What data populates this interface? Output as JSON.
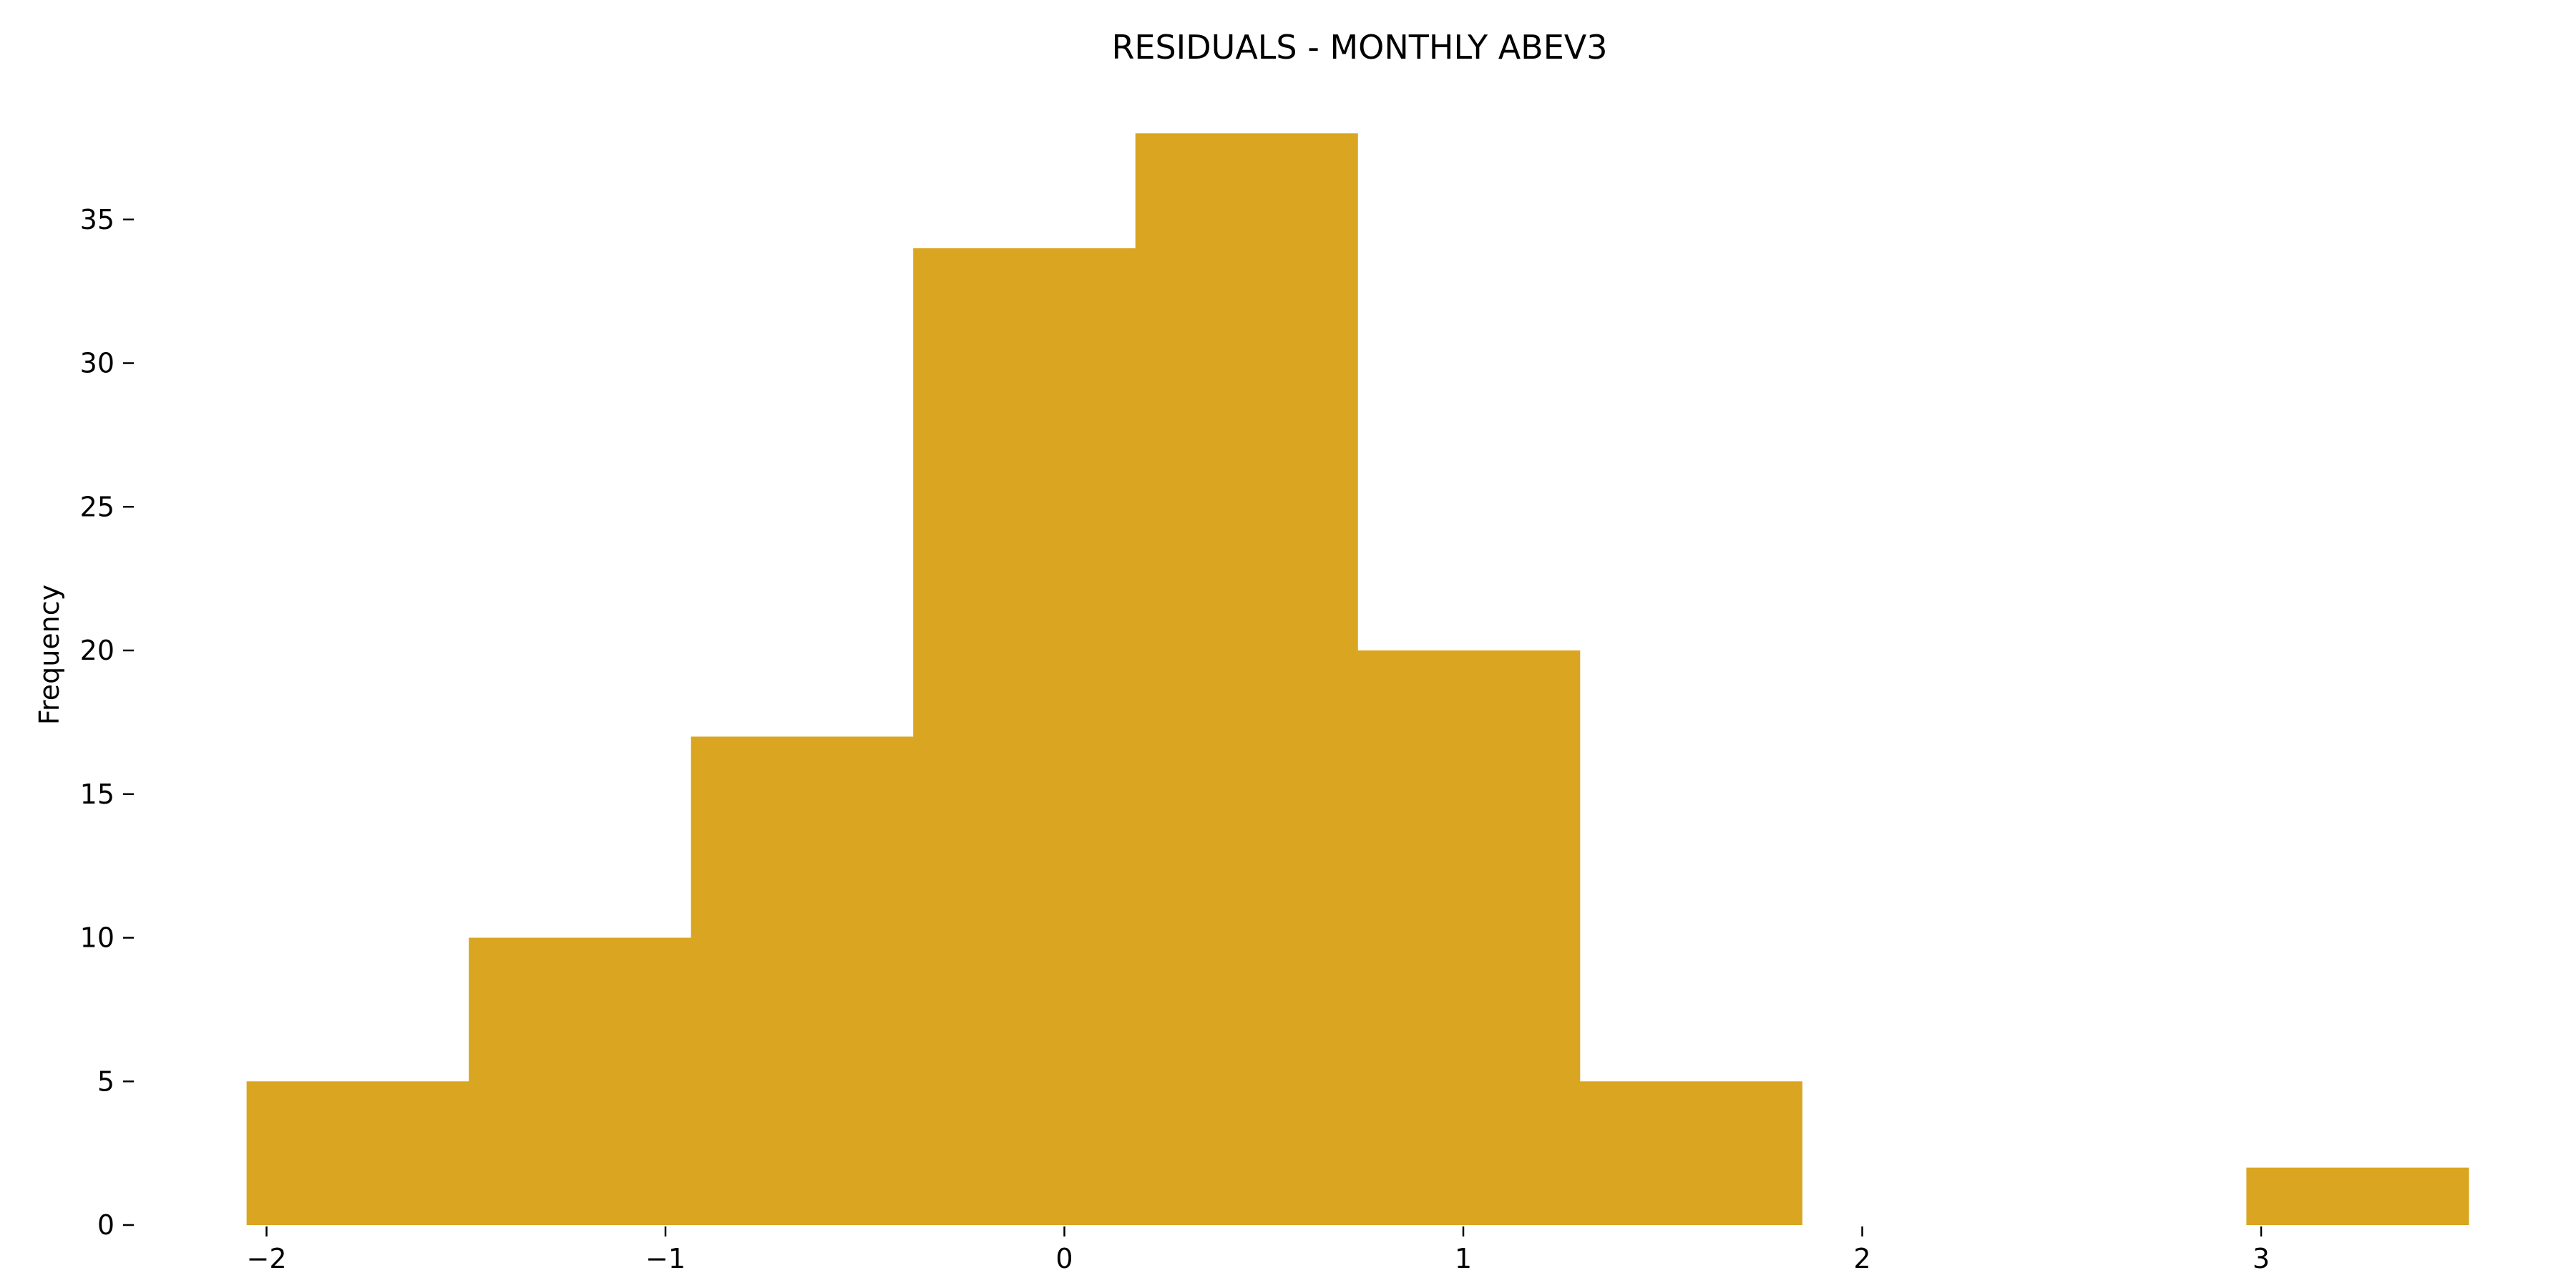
{
  "chart_data": {
    "type": "bar",
    "title": "RESIDUALS - MONTHLY ABEV3",
    "xlabel": "",
    "ylabel": "Frequency",
    "bins": [
      {
        "x0": -2.05,
        "x1": -1.493,
        "count": 5
      },
      {
        "x0": -1.493,
        "x1": -0.936,
        "count": 10
      },
      {
        "x0": -0.936,
        "x1": -0.379,
        "count": 17
      },
      {
        "x0": -0.379,
        "x1": 0.178,
        "count": 34
      },
      {
        "x0": 0.178,
        "x1": 0.735,
        "count": 38
      },
      {
        "x0": 0.735,
        "x1": 1.292,
        "count": 20
      },
      {
        "x0": 1.292,
        "x1": 1.849,
        "count": 5
      },
      {
        "x0": 1.849,
        "x1": 2.406,
        "count": 0
      },
      {
        "x0": 2.406,
        "x1": 2.963,
        "count": 0
      },
      {
        "x0": 2.963,
        "x1": 3.52,
        "count": 2
      }
    ],
    "xlim": [
      -2.35,
      3.8
    ],
    "ylim": [
      0,
      38
    ],
    "xticks": [
      {
        "value": -2,
        "label": "−2"
      },
      {
        "value": -1,
        "label": "−1"
      },
      {
        "value": 0,
        "label": "0"
      },
      {
        "value": 1,
        "label": "1"
      },
      {
        "value": 2,
        "label": "2"
      },
      {
        "value": 3,
        "label": "3"
      }
    ],
    "yticks": [
      {
        "value": 0,
        "label": "0"
      },
      {
        "value": 5,
        "label": "5"
      },
      {
        "value": 10,
        "label": "10"
      },
      {
        "value": 15,
        "label": "15"
      },
      {
        "value": 20,
        "label": "20"
      },
      {
        "value": 25,
        "label": "25"
      },
      {
        "value": 30,
        "label": "30"
      },
      {
        "value": 35,
        "label": "35"
      }
    ],
    "bar_color": "#DAA520",
    "grid": false,
    "spines": false
  }
}
